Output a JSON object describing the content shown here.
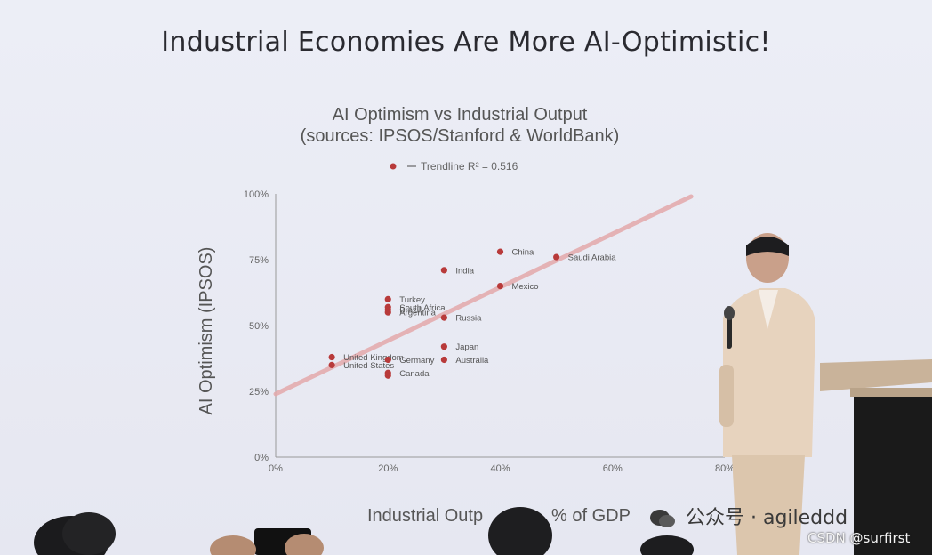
{
  "slide": {
    "title": "Industrial Economies Are More AI-Optimistic!"
  },
  "chart_data": {
    "type": "scatter",
    "title": "AI Optimism vs Industrial Output",
    "subtitle": "(sources: IPSOS/Stanford & WorldBank)",
    "xlabel": "Industrial Outp",
    "xlabel_tail": "% of GDP",
    "ylabel": "AI Optimism (IPSOS)",
    "legend": {
      "position": "top",
      "marker_label": "",
      "trend_label": "Trendline R² = 0.516"
    },
    "xlim": [
      0,
      80
    ],
    "ylim": [
      0,
      100
    ],
    "x_ticks": [
      0,
      20,
      40,
      60,
      80
    ],
    "x_tick_labels": [
      "0%",
      "20%",
      "40%",
      "60%",
      "80%"
    ],
    "y_ticks": [
      0,
      25,
      50,
      75,
      100
    ],
    "y_tick_labels": [
      "0%",
      "25%",
      "50%",
      "75%",
      "100%"
    ],
    "grid": false,
    "points": [
      {
        "label": "China",
        "x": 40,
        "y": 78
      },
      {
        "label": "Saudi Arabia",
        "x": 50,
        "y": 76
      },
      {
        "label": "India",
        "x": 30,
        "y": 71
      },
      {
        "label": "Mexico",
        "x": 40,
        "y": 65
      },
      {
        "label": "Turkey",
        "x": 20,
        "y": 60
      },
      {
        "label": "South Africa",
        "x": 20,
        "y": 57
      },
      {
        "label": "Brazil",
        "x": 20,
        "y": 56
      },
      {
        "label": "Argentina",
        "x": 20,
        "y": 55
      },
      {
        "label": "Russia",
        "x": 30,
        "y": 53
      },
      {
        "label": "Japan",
        "x": 30,
        "y": 42
      },
      {
        "label": "Australia",
        "x": 30,
        "y": 37
      },
      {
        "label": "United Kingdom",
        "x": 10,
        "y": 38
      },
      {
        "label": "United States",
        "x": 10,
        "y": 35
      },
      {
        "label": "Germany",
        "x": 20,
        "y": 37
      },
      {
        "label": "Canada",
        "x": 20,
        "y": 32
      },
      {
        "label": "",
        "x": 20,
        "y": 31
      }
    ],
    "trendline": {
      "x": [
        0,
        74
      ],
      "y": [
        24,
        99
      ]
    },
    "colors": {
      "point": "#b83a3a",
      "trend": "#e4a9ab",
      "text": "#555555"
    }
  },
  "overlay": {
    "watermark": "公众号 · agileddd",
    "credit": "CSDN @surfirst"
  }
}
